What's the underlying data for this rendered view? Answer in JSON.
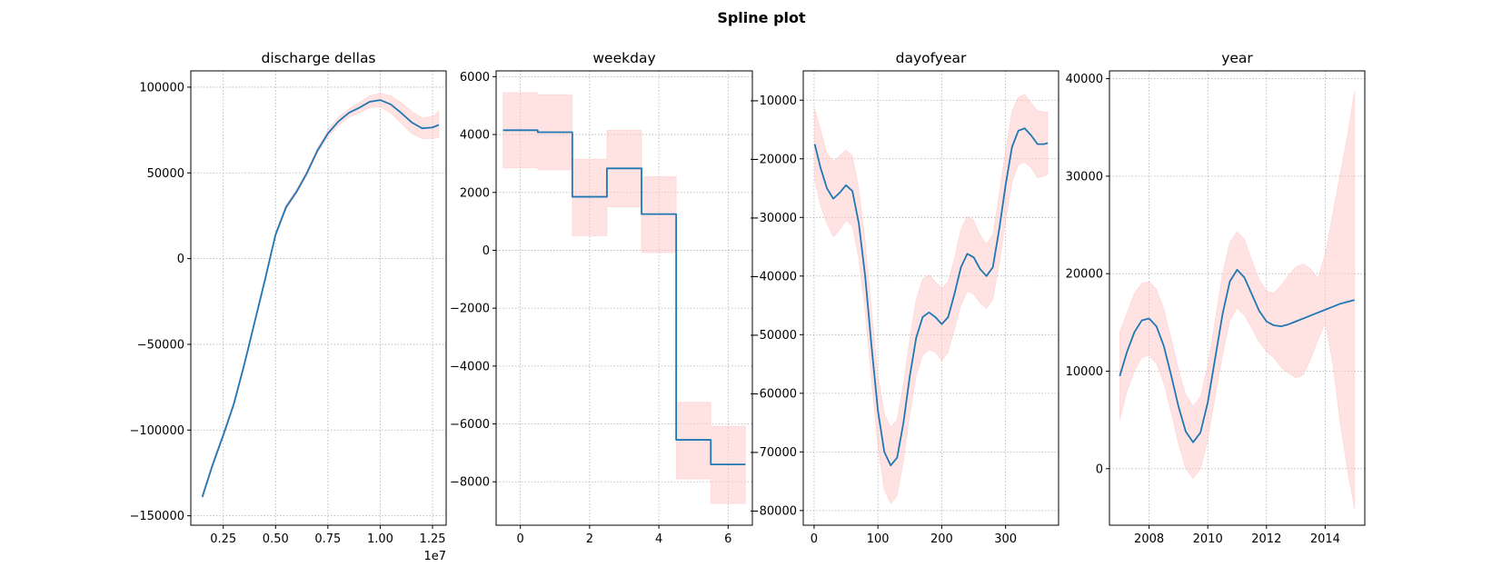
{
  "figure": {
    "suptitle": "Spline plot"
  },
  "colors": {
    "line": "#1f77b4",
    "band": "#ffcccc",
    "band_edge": "#ff9999",
    "grid": "#b0b0b0"
  },
  "chart_data": [
    {
      "type": "line",
      "title": "discharge dellas",
      "xlim": [
        950000,
        13150000
      ],
      "ylim": [
        -155500,
        109500
      ],
      "x_ticks": [
        2500000,
        5000000,
        7500000,
        10000000,
        12500000
      ],
      "x_tick_labels": [
        "0.25",
        "0.50",
        "0.75",
        "1.00",
        "1.25"
      ],
      "x_offset_label": "1e7",
      "y_ticks": [
        -150000,
        -100000,
        -50000,
        0,
        50000,
        100000
      ],
      "y_tick_labels": [
        "−150000",
        "−100000",
        "−50000",
        "0",
        "50000",
        "100000"
      ],
      "grid": true,
      "series": [
        {
          "x": [
            1500000,
            2000000,
            2500000,
            3000000,
            3500000,
            4000000,
            4500000,
            5000000,
            5500000,
            6000000,
            6500000,
            7000000,
            7500000,
            8000000,
            8500000,
            9000000,
            9500000,
            10000000,
            10500000,
            11000000,
            11500000,
            12000000,
            12500000,
            12800000
          ],
          "y": [
            -139000,
            -120000,
            -103000,
            -85000,
            -62000,
            -37000,
            -12000,
            14000,
            30000,
            39000,
            50000,
            63000,
            73000,
            80000,
            85000,
            88000,
            91500,
            92500,
            90000,
            85000,
            79500,
            76000,
            76500,
            78000
          ],
          "upper": [
            -137500,
            -118500,
            -101500,
            -83500,
            -60500,
            -35500,
            -10500,
            15500,
            31500,
            40500,
            51500,
            64500,
            75000,
            82500,
            87500,
            91000,
            95000,
            96500,
            95000,
            91000,
            86000,
            82000,
            83000,
            86000
          ],
          "lower": [
            -140500,
            -121500,
            -104500,
            -86500,
            -63500,
            -38500,
            -13500,
            12500,
            28500,
            37500,
            48500,
            61500,
            71000,
            77500,
            82500,
            85000,
            88000,
            88500,
            85000,
            79000,
            73000,
            70000,
            70000,
            70500
          ]
        }
      ]
    },
    {
      "type": "line",
      "title": "weekday",
      "xlim": [
        -0.7,
        6.7
      ],
      "ylim": [
        -9500,
        6200
      ],
      "x_ticks": [
        0,
        2,
        4,
        6
      ],
      "x_tick_labels": [
        "0",
        "2",
        "4",
        "6"
      ],
      "y_ticks": [
        -8000,
        -6000,
        -4000,
        -2000,
        0,
        2000,
        4000,
        6000
      ],
      "y_tick_labels": [
        "−8000",
        "−6000",
        "−4000",
        "−2000",
        "0",
        "2000",
        "4000",
        "6000"
      ],
      "grid": true,
      "series": [
        {
          "x": [
            -0.5,
            0.5,
            0.5,
            1.5,
            1.5,
            2.5,
            2.5,
            3.5,
            3.5,
            4.5,
            4.5,
            5.5,
            5.5,
            6.5
          ],
          "y": [
            4150,
            4150,
            4080,
            4080,
            1850,
            1850,
            2830,
            2830,
            1250,
            1250,
            -6550,
            -6550,
            -7400,
            -7400
          ],
          "upper": [
            5450,
            5450,
            5380,
            5380,
            3150,
            3150,
            4150,
            4150,
            2550,
            2550,
            -5250,
            -5250,
            -6080,
            -6080
          ],
          "lower": [
            2850,
            2850,
            2780,
            2780,
            500,
            500,
            1500,
            1500,
            -80,
            -80,
            -7900,
            -7900,
            -8750,
            -8750
          ]
        }
      ]
    },
    {
      "type": "line",
      "title": "dayofyear",
      "xlim": [
        -17,
        383
      ],
      "ylim": [
        -82500,
        -5000
      ],
      "x_ticks": [
        0,
        100,
        200,
        300
      ],
      "x_tick_labels": [
        "0",
        "100",
        "200",
        "300"
      ],
      "y_ticks": [
        -80000,
        -70000,
        -60000,
        -50000,
        -40000,
        -30000,
        -20000,
        -10000
      ],
      "y_tick_labels": [
        "−80000",
        "−70000",
        "−60000",
        "−50000",
        "−40000",
        "−30000",
        "−20000",
        "−10000"
      ],
      "grid": true,
      "series": [
        {
          "x": [
            1,
            10,
            20,
            30,
            40,
            50,
            60,
            70,
            80,
            90,
            100,
            110,
            120,
            130,
            140,
            150,
            160,
            170,
            180,
            190,
            200,
            210,
            220,
            230,
            240,
            250,
            260,
            270,
            280,
            290,
            300,
            310,
            320,
            330,
            340,
            350,
            360,
            366
          ],
          "y": [
            -17500,
            -21500,
            -25000,
            -26800,
            -25800,
            -24500,
            -25500,
            -31000,
            -40000,
            -52000,
            -63000,
            -70000,
            -72300,
            -71000,
            -65000,
            -57000,
            -50500,
            -47000,
            -46200,
            -47000,
            -48200,
            -47000,
            -43000,
            -38500,
            -36200,
            -36800,
            -38800,
            -40000,
            -38500,
            -32000,
            -24500,
            -18000,
            -15200,
            -14800,
            -16000,
            -17500,
            -17500,
            -17300
          ],
          "upper": [
            -11500,
            -15000,
            -19000,
            -20500,
            -19500,
            -18500,
            -19500,
            -25000,
            -34000,
            -46000,
            -57000,
            -63500,
            -65800,
            -64500,
            -58500,
            -50500,
            -44000,
            -40500,
            -39800,
            -41000,
            -42000,
            -41000,
            -37000,
            -32000,
            -29800,
            -30500,
            -33000,
            -34500,
            -33000,
            -26000,
            -18500,
            -12000,
            -9500,
            -9000,
            -10500,
            -11800,
            -12000,
            -12000
          ],
          "lower": [
            -23500,
            -28000,
            -31000,
            -33300,
            -32100,
            -30500,
            -31500,
            -37000,
            -46000,
            -58000,
            -69000,
            -76500,
            -78800,
            -77500,
            -71500,
            -63500,
            -57000,
            -53500,
            -52600,
            -53000,
            -54400,
            -53000,
            -49000,
            -45000,
            -42600,
            -43100,
            -44600,
            -45500,
            -44000,
            -38000,
            -30500,
            -24000,
            -21000,
            -20600,
            -21500,
            -23200,
            -23000,
            -22600
          ]
        }
      ]
    },
    {
      "type": "line",
      "title": "year",
      "xlim": [
        2006.65,
        2015.35
      ],
      "ylim": [
        -5800,
        40800
      ],
      "x_ticks": [
        2008,
        2010,
        2012,
        2014
      ],
      "x_tick_labels": [
        "2008",
        "2010",
        "2012",
        "2014"
      ],
      "y_ticks": [
        0,
        10000,
        20000,
        30000,
        40000
      ],
      "y_tick_labels": [
        "0",
        "10000",
        "20000",
        "30000",
        "40000"
      ],
      "grid": true,
      "series": [
        {
          "x": [
            2007.0,
            2007.25,
            2007.5,
            2007.75,
            2008.0,
            2008.25,
            2008.5,
            2008.75,
            2009.0,
            2009.25,
            2009.5,
            2009.75,
            2010.0,
            2010.25,
            2010.5,
            2010.75,
            2011.0,
            2011.25,
            2011.5,
            2011.75,
            2012.0,
            2012.25,
            2012.5,
            2012.75,
            2013.0,
            2013.25,
            2013.5,
            2013.75,
            2014.0,
            2014.25,
            2014.5,
            2014.75,
            2015.0
          ],
          "y": [
            9500,
            12000,
            14000,
            15200,
            15400,
            14600,
            12600,
            9600,
            6400,
            3800,
            2700,
            3700,
            6800,
            11300,
            15800,
            19200,
            20400,
            19600,
            17900,
            16200,
            15100,
            14700,
            14600,
            14800,
            15100,
            15400,
            15700,
            16000,
            16300,
            16600,
            16900,
            17100,
            17300
          ],
          "upper": [
            14000,
            16000,
            18000,
            19000,
            19200,
            18400,
            16400,
            13400,
            10200,
            7600,
            6400,
            7400,
            10600,
            15200,
            20000,
            23200,
            24300,
            23500,
            21400,
            19400,
            18200,
            18000,
            18800,
            19800,
            20700,
            21000,
            20500,
            19500,
            22000,
            26000,
            30000,
            34000,
            38700
          ],
          "lower": [
            5000,
            8000,
            10000,
            11400,
            11600,
            10800,
            8800,
            5800,
            2600,
            0,
            -1000,
            0,
            3000,
            7400,
            11600,
            15200,
            16500,
            15700,
            14400,
            13000,
            12000,
            11400,
            10400,
            9800,
            9300,
            9600,
            11200,
            13200,
            15000,
            11000,
            5000,
            0,
            -4100
          ]
        }
      ]
    }
  ]
}
